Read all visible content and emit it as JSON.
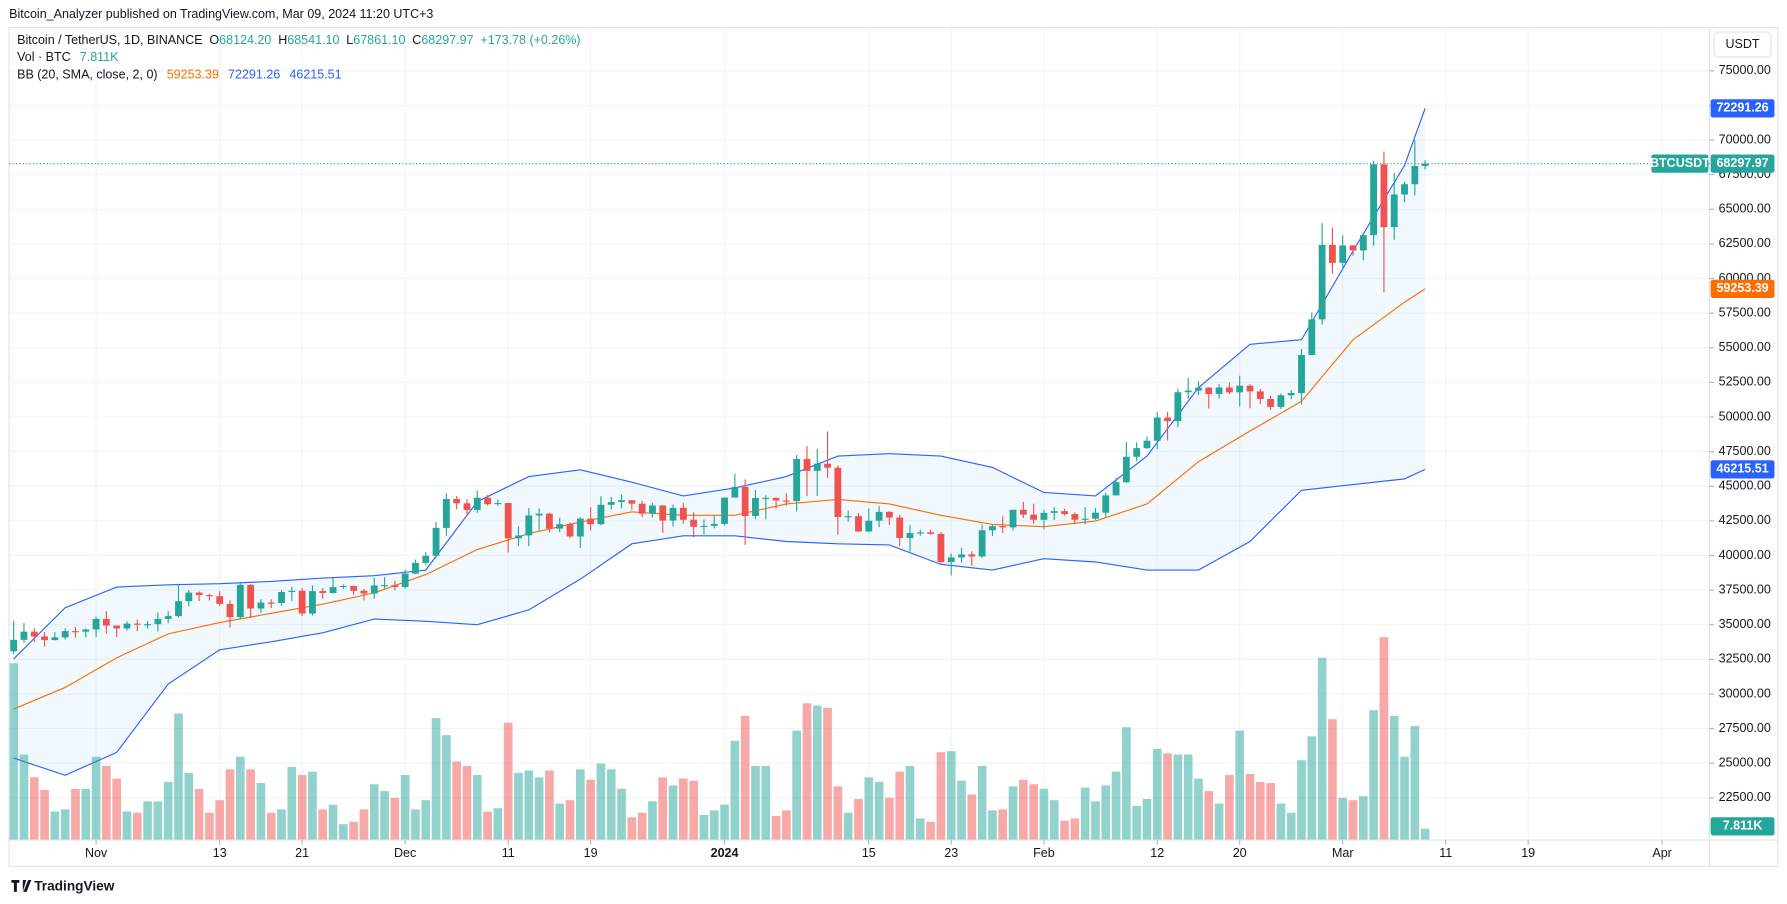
{
  "header": {
    "publisher": "Bitcoin_Analyzer published on TradingView.com, Mar 09, 2024 11:20 UTC+3"
  },
  "footer": {
    "brand": "TradingView"
  },
  "chart_data": {
    "type": "candlestick",
    "symbol": "Bitcoin / TetherUS, 1D, BINANCE",
    "ticker": "BTCUSDT",
    "currency": "USDT",
    "ohlc": [
      {
        "key": "O",
        "value": 68124.2,
        "label": "68124.20"
      },
      {
        "key": "H",
        "value": 68541.1,
        "label": "68541.10"
      },
      {
        "key": "L",
        "value": 67861.1,
        "label": "67861.10"
      },
      {
        "key": "C",
        "value": 68297.97,
        "label": "68297.97"
      }
    ],
    "change": "+173.78 (+0.26%)",
    "up_color": "#26a69a",
    "down_color": "#ef5350",
    "grid": true,
    "xlim": [
      -0.44,
      164.6
    ],
    "xticks": [
      {
        "value": 8,
        "label": "Nov"
      },
      {
        "value": 20,
        "label": "13"
      },
      {
        "value": 28,
        "label": "21"
      },
      {
        "value": 38,
        "label": "Dec"
      },
      {
        "value": 48,
        "label": "11"
      },
      {
        "value": 56,
        "label": "19"
      },
      {
        "value": 69,
        "label": "2024"
      },
      {
        "value": 83,
        "label": "15"
      },
      {
        "value": 91,
        "label": "23"
      },
      {
        "value": 100,
        "label": "Feb"
      },
      {
        "value": 111,
        "label": "12"
      },
      {
        "value": 119,
        "label": "20"
      },
      {
        "value": 129,
        "label": "Mar"
      },
      {
        "value": 139,
        "label": "11"
      },
      {
        "value": 147,
        "label": "19"
      },
      {
        "value": 160,
        "label": "Apr"
      }
    ],
    "ylim": [
      19450,
      78130
    ],
    "yticks": [
      {
        "value": 22500,
        "label": "22500.00"
      },
      {
        "value": 25000,
        "label": "25000.00"
      },
      {
        "value": 27500,
        "label": "27500.00"
      },
      {
        "value": 30000,
        "label": "30000.00"
      },
      {
        "value": 32500,
        "label": "32500.00"
      },
      {
        "value": 35000,
        "label": "35000.00"
      },
      {
        "value": 37500,
        "label": "37500.00"
      },
      {
        "value": 40000,
        "label": "40000.00"
      },
      {
        "value": 42500,
        "label": "42500.00"
      },
      {
        "value": 45000,
        "label": "45000.00"
      },
      {
        "value": 47500,
        "label": "47500.00"
      },
      {
        "value": 50000,
        "label": "50000.00"
      },
      {
        "value": 52500,
        "label": "52500.00"
      },
      {
        "value": 55000,
        "label": "55000.00"
      },
      {
        "value": 57500,
        "label": "57500.00"
      },
      {
        "value": 60000,
        "label": "60000.00"
      },
      {
        "value": 62500,
        "label": "62500.00"
      },
      {
        "value": 65000,
        "label": "65000.00"
      },
      {
        "value": 67500,
        "label": "67500.00"
      },
      {
        "value": 70000,
        "label": "70000.00"
      },
      {
        "value": 72500,
        "label": "72500.00"
      },
      {
        "value": 75000,
        "label": "75000.00"
      }
    ],
    "open": [
      33080,
      33910,
      34500,
      34150,
      33890,
      34090,
      34540,
      34500,
      34660,
      35420,
      34940,
      34730,
      35080,
      35020,
      35040,
      35420,
      35620,
      36700,
      37320,
      37140,
      37060,
      36500,
      35550,
      37880,
      36170,
      36600,
      36570,
      37360,
      37450,
      35810,
      37430,
      37290,
      37720,
      37800,
      37450,
      37250,
      37830,
      37860,
      37720,
      38690,
      39470,
      39980,
      41990,
      44080,
      43770,
      43290,
      44170,
      43710,
      43790,
      41240,
      41450,
      42890,
      43020,
      41940,
      42260,
      41370,
      42660,
      42260,
      43660,
      43860,
      43990,
      43740,
      43020,
      43610,
      42520,
      43440,
      42580,
      42070,
      42140,
      42280,
      44180,
      44950,
      42850,
      44150,
      44160,
      43970,
      43930,
      46970,
      46110,
      46630,
      46340,
      42780,
      42840,
      41730,
      42510,
      43150,
      42740,
      41260,
      41620,
      41670,
      41560,
      39530,
      39860,
      40080,
      39930,
      41820,
      42120,
      42030,
      43300,
      42950,
      42580,
      43080,
      43200,
      42990,
      42580,
      42660,
      43090,
      44340,
      45290,
      47130,
      47750,
      48290,
      49960,
      49700,
      51790,
      51910,
      52120,
      51660,
      52130,
      51780,
      52260,
      51850,
      51300,
      50730,
      51570,
      51730,
      54480,
      57050,
      62430,
      61130,
      62390,
      62030,
      63130,
      68250,
      63710,
      66070,
      66810,
      68124.2
    ],
    "high": [
      35280,
      35130,
      34740,
      34480,
      34460,
      34740,
      34840,
      34720,
      35580,
      35980,
      34940,
      35250,
      35380,
      35280,
      35890,
      35980,
      37970,
      37520,
      37410,
      37230,
      37420,
      36770,
      37980,
      37930,
      36850,
      36840,
      37520,
      37750,
      37650,
      37850,
      37650,
      38430,
      37900,
      37830,
      37580,
      38400,
      38440,
      38170,
      38980,
      39700,
      40250,
      42420,
      44490,
      44300,
      44050,
      44700,
      44370,
      44050,
      43800,
      42100,
      43430,
      43400,
      43090,
      42720,
      42400,
      42750,
      43490,
      44280,
      44240,
      44400,
      43990,
      43940,
      43800,
      43630,
      43680,
      43800,
      43120,
      42600,
      42900,
      44190,
      45900,
      45500,
      44730,
      44340,
      44200,
      44500,
      47250,
      47900,
      47700,
      48970,
      46500,
      43260,
      43070,
      43400,
      43580,
      43200,
      42930,
      42200,
      41870,
      41880,
      41690,
      40130,
      40560,
      40300,
      42230,
      42200,
      42840,
      43300,
      43880,
      43740,
      43290,
      43490,
      43380,
      43120,
      43500,
      43420,
      44530,
      45600,
      48200,
      48170,
      48590,
      50370,
      50370,
      52040,
      52820,
      52580,
      52160,
      52380,
      52490,
      52980,
      52370,
      52020,
      51550,
      51700,
      51950,
      54910,
      57550,
      64000,
      63680,
      63110,
      62430,
      63230,
      68500,
      69170,
      67630,
      67000,
      70000,
      68541.1
    ],
    "low": [
      32880,
      33700,
      33760,
      33420,
      33860,
      33930,
      34080,
      34080,
      34100,
      34350,
      34100,
      34580,
      34530,
      34720,
      34520,
      35100,
      35530,
      36330,
      36710,
      36750,
      36350,
      34800,
      35370,
      35500,
      35860,
      36200,
      36370,
      36700,
      35630,
      35670,
      36870,
      37250,
      37600,
      37150,
      36750,
      36880,
      37600,
      37500,
      37610,
      38650,
      39300,
      39980,
      41420,
      43340,
      42820,
      43080,
      43600,
      43560,
      40220,
      40680,
      40670,
      41810,
      41660,
      41680,
      41250,
      40540,
      41800,
      42200,
      43320,
      43400,
      43300,
      42770,
      42750,
      41630,
      42100,
      42300,
      41300,
      41520,
      41960,
      42180,
      44180,
      40750,
      42620,
      42600,
      43400,
      43590,
      43180,
      44300,
      44300,
      45600,
      41500,
      42440,
      41720,
      41700,
      42050,
      42200,
      40680,
      40280,
      41420,
      41500,
      39430,
      38560,
      39480,
      39250,
      39820,
      41400,
      41620,
      41800,
      42700,
      42280,
      41880,
      42560,
      42880,
      42250,
      42260,
      42580,
      42790,
      44330,
      45240,
      46800,
      47700,
      47690,
      48300,
      49250,
      51320,
      51580,
      50620,
      51330,
      51670,
      50760,
      50630,
      50920,
      50520,
      50580,
      51280,
      50900,
      54440,
      56680,
      60360,
      60790,
      61660,
      61320,
      62360,
      59000,
      62800,
      65500,
      66000,
      67861.1
    ],
    "close": [
      33910,
      34500,
      34150,
      33890,
      34090,
      34540,
      34500,
      34660,
      35420,
      34940,
      34730,
      35080,
      35020,
      35040,
      35420,
      35620,
      36700,
      37320,
      37140,
      37060,
      36500,
      35550,
      37880,
      36170,
      36600,
      36570,
      37360,
      37450,
      35810,
      37430,
      37290,
      37720,
      37800,
      37450,
      37250,
      37830,
      37860,
      37720,
      38690,
      39470,
      39980,
      41990,
      44080,
      43770,
      43290,
      44170,
      43710,
      43790,
      41240,
      41450,
      42890,
      43020,
      41940,
      42260,
      41370,
      42660,
      42260,
      43660,
      43860,
      43990,
      43740,
      43020,
      43610,
      42520,
      43440,
      42580,
      42070,
      42140,
      42280,
      44180,
      44950,
      42850,
      44150,
      44160,
      43970,
      43930,
      46970,
      46110,
      46630,
      46340,
      42780,
      42840,
      41730,
      42510,
      43150,
      42740,
      41260,
      41620,
      41670,
      41560,
      39530,
      39860,
      40080,
      39930,
      41820,
      42120,
      42030,
      43300,
      42950,
      42580,
      43080,
      43200,
      42990,
      42580,
      42660,
      43090,
      44340,
      45290,
      47130,
      47750,
      48290,
      49960,
      49700,
      51790,
      51910,
      52120,
      51660,
      52130,
      51780,
      52260,
      51850,
      51300,
      50730,
      51570,
      51730,
      54480,
      57050,
      62430,
      61130,
      62390,
      62030,
      63130,
      68250,
      63710,
      66070,
      66810,
      68124.2,
      68297.97
    ],
    "volume": {
      "name": "Vol · BTC",
      "values": [
        121000,
        58500,
        43000,
        34300,
        19500,
        21000,
        35000,
        35000,
        57000,
        50700,
        42000,
        19500,
        18700,
        26500,
        26500,
        39800,
        86600,
        46000,
        35000,
        18700,
        27300,
        48400,
        57000,
        48400,
        39000,
        18700,
        21000,
        50000,
        44500,
        46800,
        21000,
        24200,
        10900,
        12500,
        21000,
        38200,
        33500,
        28900,
        44500,
        21000,
        27300,
        83500,
        71800,
        53800,
        50700,
        44500,
        19500,
        21800,
        80300,
        46000,
        47600,
        42900,
        47600,
        25000,
        27300,
        48400,
        41300,
        52300,
        48400,
        35100,
        15600,
        18700,
        26500,
        42900,
        37400,
        42100,
        40600,
        17200,
        20300,
        24200,
        67900,
        85000,
        50700,
        50700,
        16400,
        20300,
        74900,
        93600,
        92000,
        90500,
        36700,
        18700,
        28100,
        42900,
        39800,
        28900,
        46800,
        50700,
        14800,
        12500,
        60100,
        60800,
        40600,
        31200,
        50700,
        20300,
        21000,
        36700,
        41300,
        38200,
        35100,
        27300,
        13300,
        14800,
        35900,
        26500,
        37400,
        46800,
        77200,
        23400,
        28100,
        62400,
        59300,
        58500,
        58500,
        42100,
        33500,
        25000,
        44500,
        74900,
        45200,
        39800,
        39000,
        25000,
        18700,
        54600,
        71000,
        124800,
        82700,
        28900,
        27300,
        30000,
        88900,
        138800,
        85000,
        57000,
        78000,
        7811
      ],
      "value_labels": [
        null,
        null,
        null,
        null,
        null,
        null,
        null,
        null,
        null,
        null,
        null,
        null,
        null,
        null,
        null,
        null,
        null,
        null,
        null,
        null,
        null,
        null,
        null,
        null,
        null,
        null,
        null,
        null,
        null,
        null,
        null,
        null,
        null,
        null,
        null,
        null,
        null,
        null,
        null,
        null,
        null,
        null,
        null,
        null,
        null,
        null,
        null,
        null,
        null,
        null,
        null,
        null,
        null,
        null,
        null,
        null,
        null,
        null,
        null,
        null,
        null,
        null,
        null,
        null,
        null,
        null,
        null,
        null,
        null,
        null,
        null,
        null,
        null,
        null,
        null,
        null,
        null,
        null,
        null,
        null,
        null,
        null,
        null,
        null,
        null,
        null,
        null,
        null,
        null,
        null,
        null,
        null,
        null,
        null,
        null,
        null,
        null,
        null,
        null,
        null,
        null,
        null,
        null,
        null,
        null,
        null,
        null,
        null,
        null,
        null,
        null,
        null,
        null,
        null,
        null,
        null,
        null,
        null,
        null,
        null,
        null,
        null,
        null,
        null,
        null,
        null,
        null,
        null,
        null,
        null,
        null,
        null,
        null,
        null,
        null,
        null,
        null,
        "7.811K"
      ]
    },
    "bollinger": {
      "name": "BB (20, SMA, close, 2, 0)",
      "x": [
        0,
        5,
        10,
        15,
        20,
        25,
        30,
        35,
        40,
        45,
        50,
        55,
        60,
        65,
        70,
        75,
        80,
        85,
        90,
        95,
        100,
        105,
        110,
        115,
        120,
        125,
        130,
        135,
        137
      ],
      "series": [
        {
          "color": "#ff6d00",
          "values": [
            28910,
            30470,
            32610,
            34340,
            35160,
            35820,
            36480,
            37300,
            38620,
            40430,
            41580,
            42410,
            43150,
            42900,
            42900,
            43720,
            44050,
            43720,
            42900,
            42240,
            42080,
            42490,
            43720,
            46770,
            48990,
            51130,
            55580,
            58290,
            59253.39
          ]
        },
        {
          "color": "#2962ff",
          "values": [
            32530,
            36230,
            37720,
            37880,
            37960,
            38130,
            38370,
            38540,
            38950,
            43890,
            45700,
            46190,
            45290,
            44300,
            44880,
            45700,
            47180,
            47350,
            47180,
            46360,
            44550,
            44300,
            47180,
            52120,
            55250,
            55580,
            61990,
            68170,
            72291.26
          ]
        },
        {
          "color": "#2962ff",
          "values": [
            25370,
            24130,
            25780,
            30720,
            33190,
            33770,
            34420,
            35410,
            35250,
            35000,
            36070,
            38290,
            40840,
            41420,
            41420,
            41010,
            40840,
            40760,
            39360,
            38950,
            39770,
            39530,
            38950,
            38950,
            41010,
            44710,
            45120,
            45530,
            46215.51
          ]
        }
      ]
    }
  }
}
